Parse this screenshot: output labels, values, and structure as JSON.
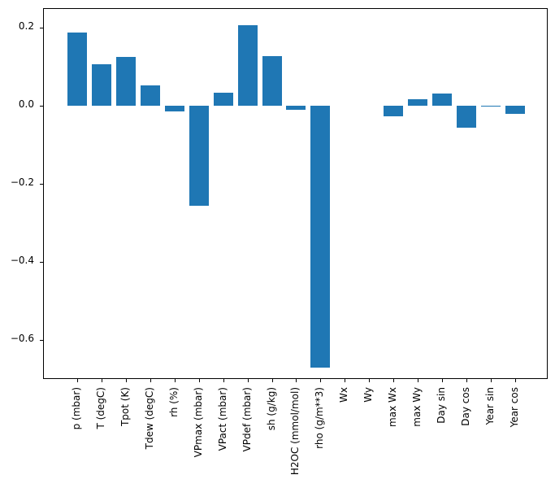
{
  "figure": {
    "background": "#ffffff",
    "spine_color": "#000000",
    "text_color": "#000000"
  },
  "chart_data": {
    "type": "bar",
    "title": "",
    "xlabel": "",
    "ylabel": "",
    "bar_color": "#1f77b4",
    "grid": false,
    "legend": null,
    "categories": [
      "p (mbar)",
      "T (degC)",
      "Tpot (K)",
      "Tdew (degC)",
      "rh (%)",
      "VPmax (mbar)",
      "VPact (mbar)",
      "VPdef (mbar)",
      "sh (g/kg)",
      "H2OC (mmol/mol)",
      "rho (g/m**3)",
      "Wx",
      "Wy",
      "max Wx",
      "max Wy",
      "Day sin",
      "Day cos",
      "Year sin",
      "Year cos"
    ],
    "values": [
      0.188,
      0.106,
      0.126,
      0.053,
      -0.015,
      -0.256,
      0.034,
      0.206,
      0.128,
      -0.011,
      -0.671,
      0.0,
      0.0,
      -0.026,
      0.017,
      0.031,
      -0.057,
      -0.002,
      -0.021
    ],
    "ylim": [
      -0.702,
      0.248
    ],
    "yticks": {
      "values": [
        0.2,
        0.0,
        -0.2,
        -0.4,
        -0.6
      ],
      "labels": [
        "0.2",
        "0.0",
        "−0.2",
        "−0.4",
        "−0.6"
      ]
    }
  }
}
